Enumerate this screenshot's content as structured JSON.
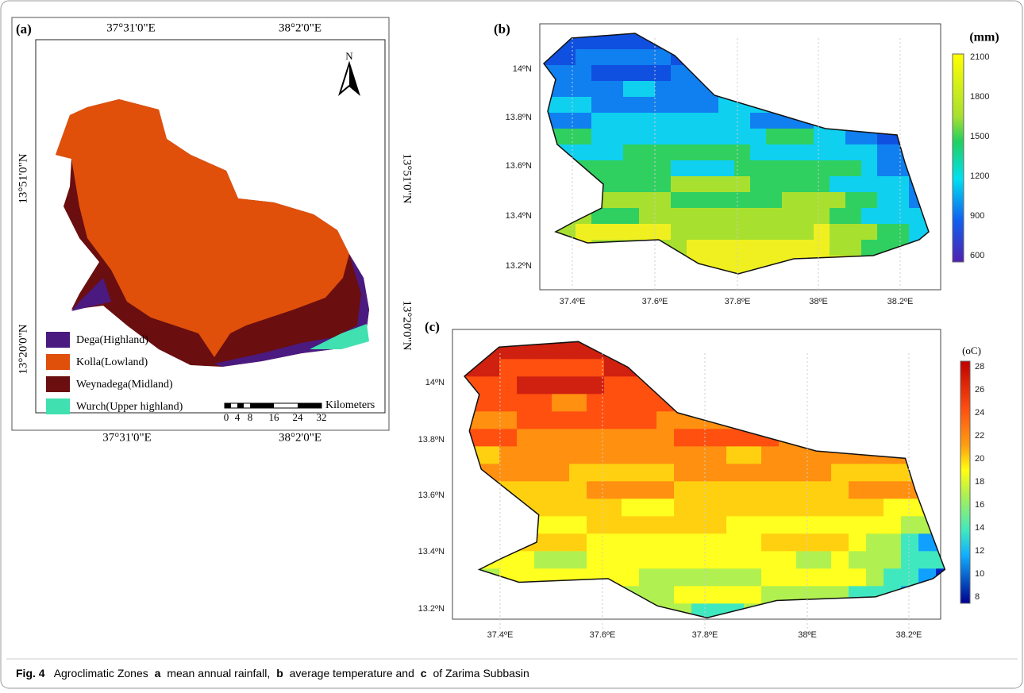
{
  "panel_a": {
    "label": "(a)",
    "top_ticks": [
      "37°31'0\"E",
      "38°2'0\"E"
    ],
    "bottom_ticks": [
      "37°31'0\"E",
      "38°2'0\"E"
    ],
    "left_ticks": [
      "13°51'0\"N",
      "13°20'0\"N"
    ],
    "right_ticks": [
      "13°51'0\"N",
      "13°20'0\"N"
    ],
    "north": "N",
    "legend": [
      "Dega(Highland)",
      "Kolla(Lowland)",
      "Weynadega(Midland)",
      "Wurch(Upper highland)"
    ],
    "scale_unit": "Kilometers",
    "scale_ticks": [
      "0",
      "4",
      "8",
      "16",
      "24",
      "32"
    ]
  },
  "panel_b": {
    "label": "(b)",
    "colorbar_title": "(mm)",
    "colorbar_ticks": [
      2100,
      1800,
      1500,
      1200,
      900,
      600
    ],
    "x_ticks": [
      "37.4ºE",
      "37.6ºE",
      "37.8ºE",
      "38ºE",
      "38.2ºE"
    ],
    "y_ticks": [
      "14ºN",
      "13.8ºN",
      "13.6ºN",
      "13.4ºN",
      "13.2ºN"
    ]
  },
  "panel_c": {
    "label": "(c)",
    "colorbar_title": "(oC)",
    "colorbar_ticks": [
      28,
      26,
      24,
      22,
      20,
      18,
      16,
      14,
      12,
      10,
      8
    ],
    "x_ticks": [
      "37.4ºE",
      "37.6ºE",
      "37.8ºE",
      "38ºE",
      "38.2ºE"
    ],
    "y_ticks": [
      "14ºN",
      "13.8ºN",
      "13.6ºN",
      "13.4ºN",
      "13.2ºN"
    ]
  },
  "caption": {
    "label": "Fig. 4",
    "parts": [
      "Agroclimatic Zones",
      "a",
      "mean annual rainfall,",
      "b",
      "average temperature and",
      "c",
      "of Zarima Subbasin"
    ]
  }
}
